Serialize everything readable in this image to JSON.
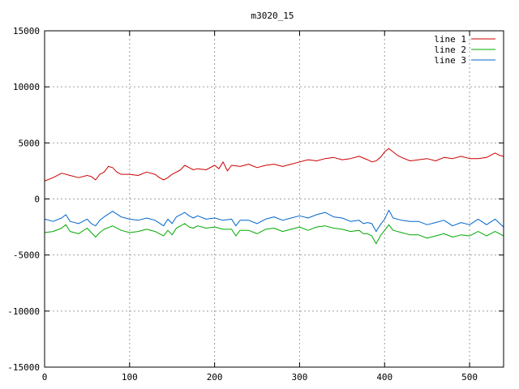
{
  "chart_data": {
    "type": "line",
    "title": "m3020_15",
    "xlabel": "",
    "ylabel": "",
    "xlim": [
      0,
      540
    ],
    "ylim": [
      -15000,
      15000
    ],
    "x_ticks": [
      0,
      100,
      200,
      300,
      400,
      500
    ],
    "y_ticks": [
      -15000,
      -10000,
      -5000,
      0,
      5000,
      10000,
      15000
    ],
    "grid": true,
    "legend_position": "top-right",
    "series": [
      {
        "name": "line 1",
        "color": "#cc0000",
        "x": [
          0,
          10,
          20,
          30,
          40,
          50,
          55,
          60,
          65,
          70,
          75,
          80,
          85,
          90,
          100,
          110,
          120,
          130,
          135,
          140,
          145,
          150,
          155,
          160,
          165,
          170,
          175,
          180,
          190,
          200,
          205,
          210,
          215,
          220,
          230,
          240,
          250,
          260,
          270,
          280,
          290,
          300,
          310,
          320,
          330,
          340,
          350,
          360,
          370,
          380,
          385,
          390,
          395,
          400,
          405,
          410,
          415,
          420,
          430,
          440,
          450,
          460,
          470,
          480,
          490,
          500,
          510,
          520,
          530,
          535,
          540
        ],
        "y": [
          1600,
          1900,
          2300,
          2100,
          1900,
          2100,
          2000,
          1700,
          2200,
          2400,
          2900,
          2800,
          2400,
          2200,
          2200,
          2100,
          2400,
          2200,
          1900,
          1700,
          1900,
          2200,
          2400,
          2600,
          3000,
          2800,
          2600,
          2700,
          2600,
          3000,
          2700,
          3300,
          2500,
          3000,
          2900,
          3100,
          2800,
          3000,
          3100,
          2900,
          3100,
          3300,
          3500,
          3400,
          3600,
          3700,
          3500,
          3600,
          3800,
          3500,
          3300,
          3400,
          3700,
          4200,
          4500,
          4200,
          3900,
          3700,
          3400,
          3500,
          3600,
          3400,
          3700,
          3600,
          3800,
          3600,
          3600,
          3700,
          4100,
          3900,
          3800
        ]
      },
      {
        "name": "line 2",
        "color": "#00aa00",
        "x": [
          0,
          10,
          20,
          25,
          30,
          40,
          50,
          55,
          60,
          65,
          70,
          80,
          90,
          100,
          110,
          120,
          130,
          140,
          145,
          150,
          155,
          160,
          165,
          170,
          175,
          180,
          190,
          200,
          210,
          220,
          225,
          230,
          240,
          250,
          260,
          270,
          280,
          290,
          300,
          310,
          320,
          330,
          340,
          350,
          360,
          370,
          375,
          380,
          385,
          390,
          395,
          400,
          405,
          410,
          420,
          430,
          440,
          450,
          460,
          470,
          480,
          490,
          500,
          510,
          520,
          530,
          540
        ],
        "y": [
          -3000,
          -2900,
          -2600,
          -2300,
          -2900,
          -3100,
          -2600,
          -3000,
          -3400,
          -3000,
          -2700,
          -2400,
          -2800,
          -3000,
          -2900,
          -2700,
          -2900,
          -3300,
          -2800,
          -3200,
          -2600,
          -2400,
          -2200,
          -2500,
          -2600,
          -2400,
          -2600,
          -2500,
          -2700,
          -2700,
          -3300,
          -2800,
          -2800,
          -3100,
          -2700,
          -2600,
          -2900,
          -2700,
          -2500,
          -2800,
          -2500,
          -2400,
          -2600,
          -2700,
          -2900,
          -2800,
          -3100,
          -3100,
          -3300,
          -4000,
          -3300,
          -2800,
          -2300,
          -2800,
          -3000,
          -3200,
          -3200,
          -3500,
          -3300,
          -3100,
          -3400,
          -3200,
          -3300,
          -2900,
          -3300,
          -2900,
          -3300
        ]
      },
      {
        "name": "line 3",
        "color": "#0066cc",
        "x": [
          0,
          10,
          20,
          25,
          30,
          40,
          50,
          55,
          60,
          65,
          70,
          80,
          90,
          100,
          110,
          120,
          130,
          140,
          145,
          150,
          155,
          160,
          165,
          170,
          175,
          180,
          190,
          200,
          210,
          220,
          225,
          230,
          240,
          250,
          260,
          270,
          280,
          290,
          300,
          310,
          320,
          330,
          340,
          350,
          360,
          370,
          375,
          380,
          385,
          390,
          395,
          400,
          405,
          410,
          420,
          430,
          440,
          450,
          460,
          470,
          480,
          490,
          500,
          510,
          520,
          530,
          540
        ],
        "y": [
          -1800,
          -2000,
          -1700,
          -1400,
          -2000,
          -2200,
          -1800,
          -2200,
          -2400,
          -1900,
          -1600,
          -1100,
          -1600,
          -1800,
          -1900,
          -1700,
          -1900,
          -2400,
          -1800,
          -2200,
          -1600,
          -1400,
          -1200,
          -1500,
          -1700,
          -1500,
          -1800,
          -1700,
          -1900,
          -1800,
          -2400,
          -1900,
          -1900,
          -2200,
          -1800,
          -1600,
          -1900,
          -1700,
          -1500,
          -1700,
          -1400,
          -1200,
          -1600,
          -1700,
          -2000,
          -1900,
          -2200,
          -2100,
          -2200,
          -2900,
          -2300,
          -1800,
          -1000,
          -1700,
          -1900,
          -2000,
          -2000,
          -2300,
          -2100,
          -1900,
          -2400,
          -2100,
          -2300,
          -1800,
          -2300,
          -1800,
          -2500
        ]
      }
    ]
  }
}
